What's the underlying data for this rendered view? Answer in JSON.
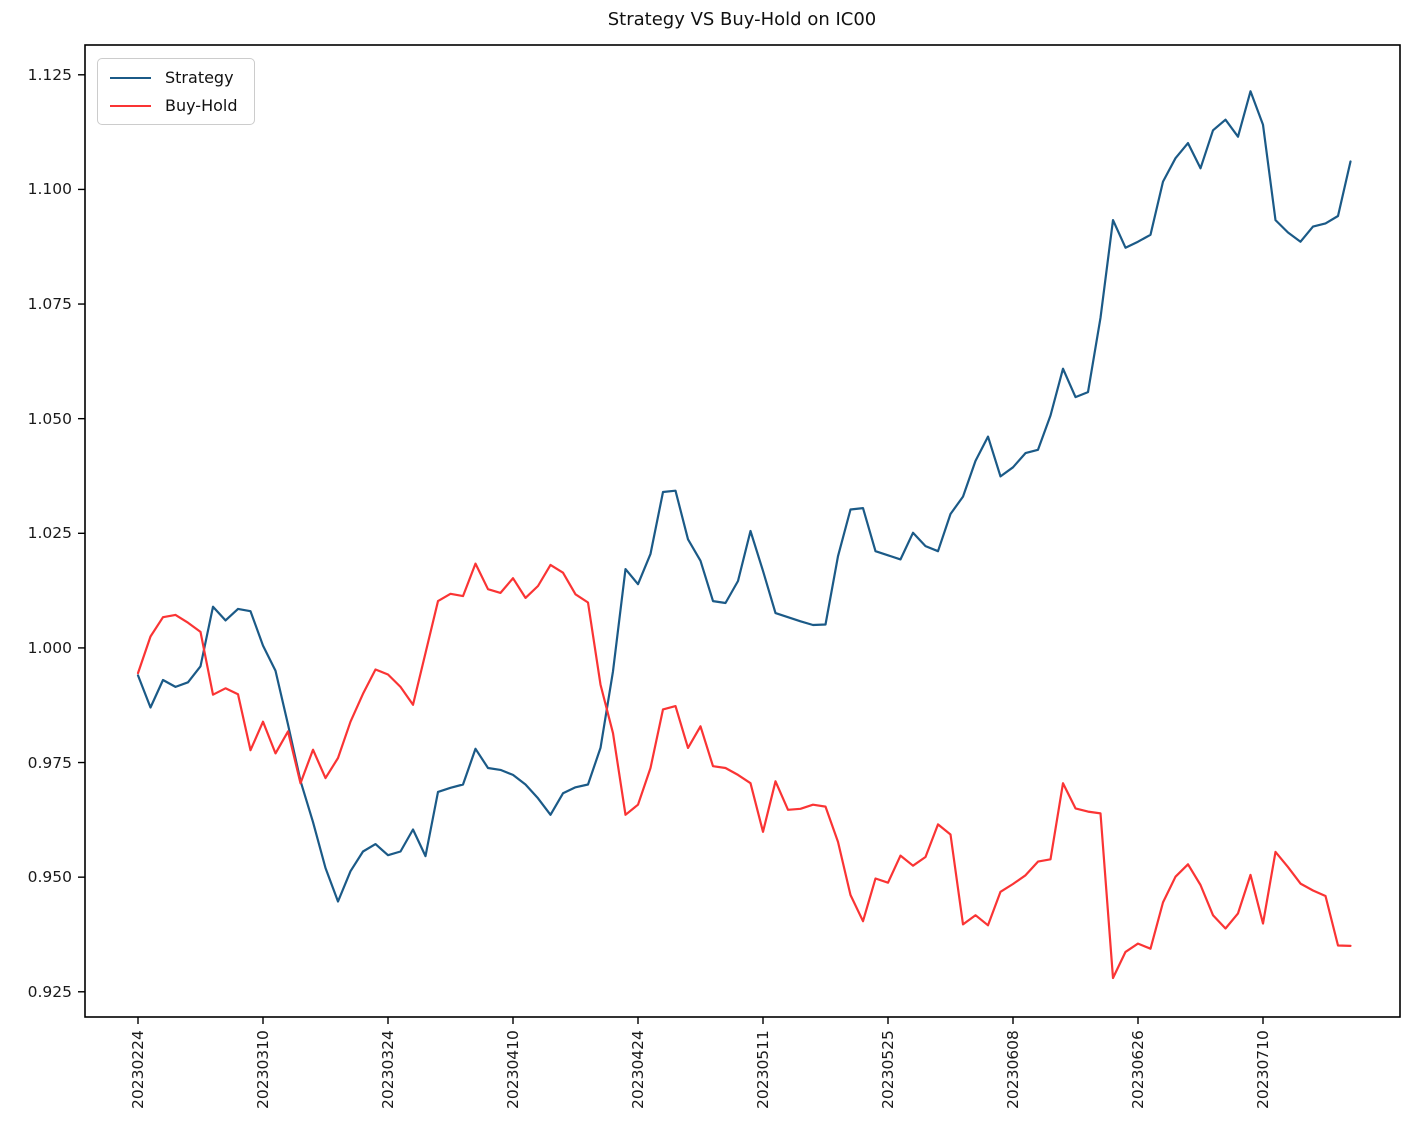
{
  "window": {
    "background_color": "#ffffff"
  },
  "chart_data": {
    "type": "line",
    "title": "Strategy VS Buy-Hold on IC00",
    "xlabel": "",
    "ylabel": "",
    "grid": false,
    "legend_position": "upper left",
    "xlim": [
      -4.24,
      100.96
    ],
    "ylim": [
      0.9195,
      1.1315
    ],
    "x_tick_indices": [
      0,
      10,
      20,
      30,
      40,
      50,
      60,
      70,
      80,
      90
    ],
    "x_tick_labels": [
      "20230224",
      "20230310",
      "20230324",
      "20230410",
      "20230424",
      "20230511",
      "20230525",
      "20230608",
      "20230626",
      "20230710"
    ],
    "y_tick_values": [
      1.125,
      1.1,
      1.075,
      1.05,
      1.025,
      1.0,
      0.975,
      0.95,
      0.925
    ],
    "y_tick_labels": [
      "1.125",
      "1.100",
      "1.075",
      "1.050",
      "1.025",
      "1.000",
      "0.975",
      "0.950",
      "0.925"
    ],
    "axis_color": "#000000",
    "series": [
      {
        "name": "Strategy",
        "color": "#1b5a87",
        "line_width": 2.2,
        "values": [
          0.994,
          0.987,
          0.993,
          0.9915,
          0.9925,
          0.996,
          1.009,
          1.006,
          1.0085,
          1.008,
          1.0005,
          0.995,
          0.9833,
          0.971,
          0.962,
          0.952,
          0.9447,
          0.9513,
          0.9556,
          0.9572,
          0.9548,
          0.9556,
          0.9604,
          0.9546,
          0.9686,
          0.9695,
          0.9702,
          0.978,
          0.9738,
          0.9734,
          0.9723,
          0.9702,
          0.9672,
          0.9636,
          0.9683,
          0.9696,
          0.9702,
          0.9782,
          0.9949,
          1.0172,
          1.0139,
          1.0205,
          1.034,
          1.0343,
          1.0237,
          1.019,
          1.0102,
          1.0098,
          1.0146,
          1.0255,
          1.0168,
          1.0076,
          1.0067,
          1.0058,
          1.005,
          1.0051,
          1.02,
          1.0302,
          1.0305,
          1.0211,
          1.0202,
          1.0193,
          1.0251,
          1.0222,
          1.0211,
          1.0292,
          1.033,
          1.0408,
          1.0461,
          1.0374,
          1.0394,
          1.0425,
          1.0432,
          1.0507,
          1.0609,
          1.0547,
          1.0558,
          1.072,
          1.0933,
          1.0873,
          1.0886,
          1.0901,
          1.1017,
          1.1068,
          1.1101,
          1.1046,
          1.1129,
          1.1152,
          1.1115,
          1.1214,
          1.1141,
          1.0933,
          1.0906,
          1.0886,
          1.0919,
          1.0926,
          1.0942,
          1.1061
        ]
      },
      {
        "name": "Buy-Hold",
        "color": "#fa3434",
        "line_width": 2.2,
        "values": [
          0.9945,
          1.0025,
          1.0067,
          1.0072,
          1.0055,
          1.0035,
          0.9898,
          0.9912,
          0.9899,
          0.9777,
          0.9839,
          0.977,
          0.9818,
          0.9705,
          0.9778,
          0.9716,
          0.976,
          0.9839,
          0.99,
          0.9953,
          0.9942,
          0.9915,
          0.9876,
          0.9989,
          1.0102,
          1.0118,
          1.0113,
          1.0184,
          1.0128,
          1.012,
          1.0152,
          1.0109,
          1.0135,
          1.0181,
          1.0164,
          1.0117,
          1.0099,
          0.992,
          0.9814,
          0.9636,
          0.9658,
          0.9738,
          0.9866,
          0.9873,
          0.9782,
          0.9829,
          0.9742,
          0.9738,
          0.9723,
          0.9705,
          0.9599,
          0.9709,
          0.9647,
          0.9649,
          0.9658,
          0.9654,
          0.9577,
          0.9461,
          0.9404,
          0.9497,
          0.9488,
          0.9547,
          0.9525,
          0.9544,
          0.9615,
          0.9593,
          0.9397,
          0.9417,
          0.9395,
          0.9468,
          0.9485,
          0.9504,
          0.9534,
          0.9539,
          0.9705,
          0.965,
          0.9643,
          0.9639,
          0.928,
          0.9337,
          0.9355,
          0.9344,
          0.9445,
          0.9501,
          0.9528,
          0.9483,
          0.9417,
          0.9388,
          0.9421,
          0.9505,
          0.9399,
          0.9555,
          0.9522,
          0.9486,
          0.9471,
          0.9459,
          0.9351,
          0.935
        ]
      }
    ]
  }
}
